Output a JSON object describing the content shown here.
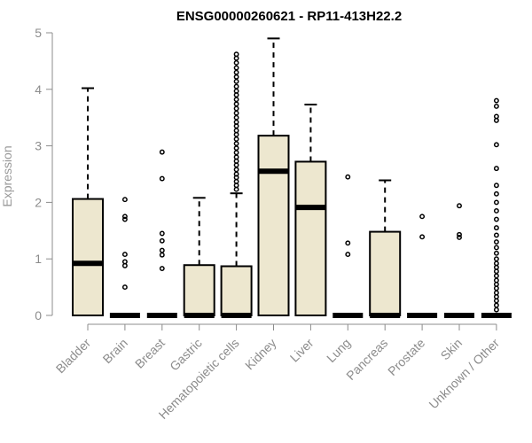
{
  "chart_data": {
    "type": "box",
    "title": "ENSG00000260621 - RP11-413H22.2",
    "ylabel": "Expression",
    "xlabel": "",
    "ylim": [
      0,
      5
    ],
    "yticks": [
      0,
      1,
      2,
      3,
      4,
      5
    ],
    "colors": {
      "box_fill": "#ede7cf",
      "box_stroke": "#000000",
      "axis": "#8c8c8c",
      "title": "#000000"
    },
    "grid": false,
    "categories": [
      "Bladder",
      "Brain",
      "Breast",
      "Gastric",
      "Hematopoietic cells",
      "Kidney",
      "Liver",
      "Lung",
      "Pancreas",
      "Prostate",
      "Skin",
      "Unknown / Other"
    ],
    "boxes": [
      {
        "label": "Bladder",
        "q1": 0.0,
        "median": 0.92,
        "q3": 2.06,
        "whisker_low": 0.0,
        "whisker_high": 4.02,
        "outliers": []
      },
      {
        "label": "Brain",
        "q1": 0.0,
        "median": 0.0,
        "q3": 0.0,
        "whisker_low": 0.0,
        "whisker_high": 0.0,
        "outliers": [
          2.05,
          1.75,
          1.7,
          1.08,
          0.95,
          0.88,
          0.5
        ]
      },
      {
        "label": "Breast",
        "q1": 0.0,
        "median": 0.0,
        "q3": 0.0,
        "whisker_low": 0.0,
        "whisker_high": 0.0,
        "outliers": [
          2.89,
          2.42,
          1.45,
          1.32,
          1.15,
          1.07,
          0.83
        ]
      },
      {
        "label": "Gastric",
        "q1": 0.0,
        "median": 0.0,
        "q3": 0.89,
        "whisker_low": 0.0,
        "whisker_high": 2.08,
        "outliers": []
      },
      {
        "label": "Hematopoietic cells",
        "q1": 0.0,
        "median": 0.0,
        "q3": 0.87,
        "whisker_low": 0.0,
        "whisker_high": 2.16,
        "outliers": [
          4.62,
          4.55,
          4.47,
          4.38,
          4.3,
          4.22,
          4.14,
          4.05,
          3.97,
          3.9,
          3.82,
          3.74,
          3.66,
          3.58,
          3.5,
          3.42,
          3.35,
          3.27,
          3.2,
          3.12,
          3.04,
          2.96,
          2.88,
          2.8,
          2.73,
          2.66,
          2.58,
          2.5,
          2.44,
          2.37,
          2.3,
          2.23
        ]
      },
      {
        "label": "Kidney",
        "q1": 0.0,
        "median": 2.55,
        "q3": 3.18,
        "whisker_low": 0.0,
        "whisker_high": 4.9,
        "outliers": []
      },
      {
        "label": "Liver",
        "q1": 0.0,
        "median": 1.91,
        "q3": 2.72,
        "whisker_low": 0.0,
        "whisker_high": 3.73,
        "outliers": []
      },
      {
        "label": "Lung",
        "q1": 0.0,
        "median": 0.0,
        "q3": 0.0,
        "whisker_low": 0.0,
        "whisker_high": 0.0,
        "outliers": [
          2.45,
          1.28,
          1.08
        ]
      },
      {
        "label": "Pancreas",
        "q1": 0.0,
        "median": 0.0,
        "q3": 1.48,
        "whisker_low": 0.0,
        "whisker_high": 2.39,
        "outliers": []
      },
      {
        "label": "Prostate",
        "q1": 0.0,
        "median": 0.0,
        "q3": 0.0,
        "whisker_low": 0.0,
        "whisker_high": 0.0,
        "outliers": [
          1.75,
          1.39
        ]
      },
      {
        "label": "Skin",
        "q1": 0.0,
        "median": 0.0,
        "q3": 0.0,
        "whisker_low": 0.0,
        "whisker_high": 0.0,
        "outliers": [
          1.94,
          1.43,
          1.38
        ]
      },
      {
        "label": "Unknown / Other",
        "q1": 0.0,
        "median": 0.0,
        "q3": 0.0,
        "whisker_low": 0.0,
        "whisker_high": 0.0,
        "outliers": [
          3.8,
          3.7,
          3.52,
          3.45,
          3.02,
          2.6,
          2.3,
          2.15,
          2.0,
          1.85,
          1.7,
          1.55,
          1.42,
          1.3,
          1.2,
          1.1,
          1.0,
          0.92,
          0.85,
          0.78,
          0.7,
          0.62,
          0.55,
          0.48,
          0.4,
          0.33,
          0.26,
          0.18,
          0.1
        ]
      }
    ]
  }
}
